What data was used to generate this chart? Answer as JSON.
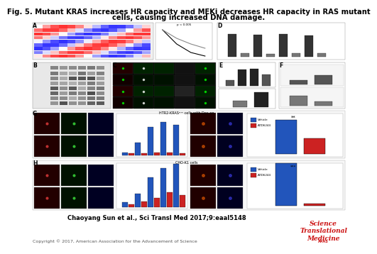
{
  "title_line1": "Fig. 5. Mutant KRAS increases HR capacity and MEKi decreases HR capacity in RAS mutant",
  "title_line2": "cells, causing increased DNA damage.",
  "title_fontsize": 7.2,
  "bg_color": "#ffffff",
  "citation": "Chaoyang Sun et al., Sci Transl Med 2017;9:eaal5148",
  "citation_fontsize": 6.0,
  "copyright": "Copyright © 2017, American Association for the Advancement of Science",
  "copyright_fontsize": 4.5,
  "journal_name": "Science\nTranslational\nMedicine",
  "journal_color": "#cc1111",
  "journal_fontsize": 6.5,
  "aaas_fontsize": 3.5,
  "panel_bg": "#f5f5f5",
  "dark_bg": "#111111",
  "heatmap_colors": [
    "#2166ac",
    "#4393c3",
    "#92c5de",
    "#f7f7f7",
    "#fddbc7",
    "#f4a582",
    "#d6604d",
    "#b2182b"
  ],
  "blue_bar": "#2255bb",
  "red_bar": "#cc2222",
  "dark_bar": "#333333",
  "mid_bar": "#777777"
}
